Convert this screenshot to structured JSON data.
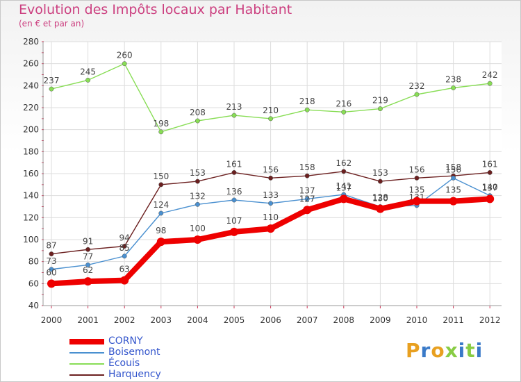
{
  "title": "Evolution des Impôts locaux par Habitant",
  "subtitle": "(en € et par an)",
  "logo_text": "Proxiti",
  "chart_data": {
    "type": "line",
    "title": "Evolution des Impôts locaux par Habitant",
    "ylabel": "(en € et par an)",
    "xlabel": "",
    "ylim": [
      40,
      280
    ],
    "yticks": [
      40,
      60,
      80,
      100,
      120,
      140,
      160,
      180,
      200,
      220,
      240,
      260,
      280
    ],
    "x": [
      "2000",
      "2001",
      "2002",
      "2003",
      "2004",
      "2005",
      "2006",
      "2007",
      "2008",
      "2009",
      "2010",
      "2011",
      "2012"
    ],
    "series": [
      {
        "name": "Harquency",
        "color": "#6b1f1f",
        "values": [
          87,
          91,
          94,
          150,
          153,
          161,
          156,
          158,
          162,
          153,
          156,
          158,
          161
        ]
      },
      {
        "name": "Écouis",
        "color": "#88dd55",
        "values": [
          237,
          245,
          260,
          198,
          208,
          213,
          210,
          218,
          216,
          219,
          232,
          238,
          242
        ]
      },
      {
        "name": "Boisemont",
        "color": "#4a90d0",
        "values": [
          73,
          77,
          85,
          124,
          132,
          136,
          133,
          137,
          141,
          130,
          131,
          156,
          140
        ]
      },
      {
        "name": "CORNY",
        "color": "#ee0000",
        "values": [
          60,
          62,
          63,
          98,
          100,
          107,
          110,
          127,
          137,
          128,
          135,
          135,
          137
        ]
      }
    ],
    "legend": [
      "CORNY",
      "Boisemont",
      "Écouis",
      "Harquency"
    ]
  }
}
